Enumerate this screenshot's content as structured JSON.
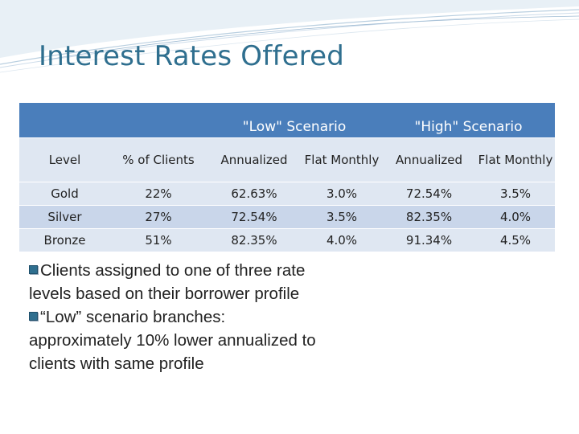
{
  "slide": {
    "title": "Interest Rates Offered",
    "colors": {
      "title": "#2f6f8f",
      "header": "#4a7ebb",
      "row_light": "#dfe7f2",
      "row_dark": "#c9d6ea"
    }
  },
  "table": {
    "scenario_headers": [
      "\"Low\" Scenario",
      "\"High\" Scenario"
    ],
    "columns": [
      "Level",
      "% of Clients",
      "Annualized",
      "Flat Monthly",
      "Annualized",
      "Flat Monthly"
    ],
    "rows": [
      [
        "Gold",
        "22%",
        "62.63%",
        "3.0%",
        "72.54%",
        "3.5%"
      ],
      [
        "Silver",
        "27%",
        "72.54%",
        "3.5%",
        "82.35%",
        "4.0%"
      ],
      [
        "Bronze",
        "51%",
        "82.35%",
        "4.0%",
        "91.34%",
        "4.5%"
      ]
    ]
  },
  "bullets": [
    "Clients assigned to one of three rate levels based on their borrower profile",
    "“Low” scenario branches: approximately 10% lower annualized to clients with same profile"
  ]
}
